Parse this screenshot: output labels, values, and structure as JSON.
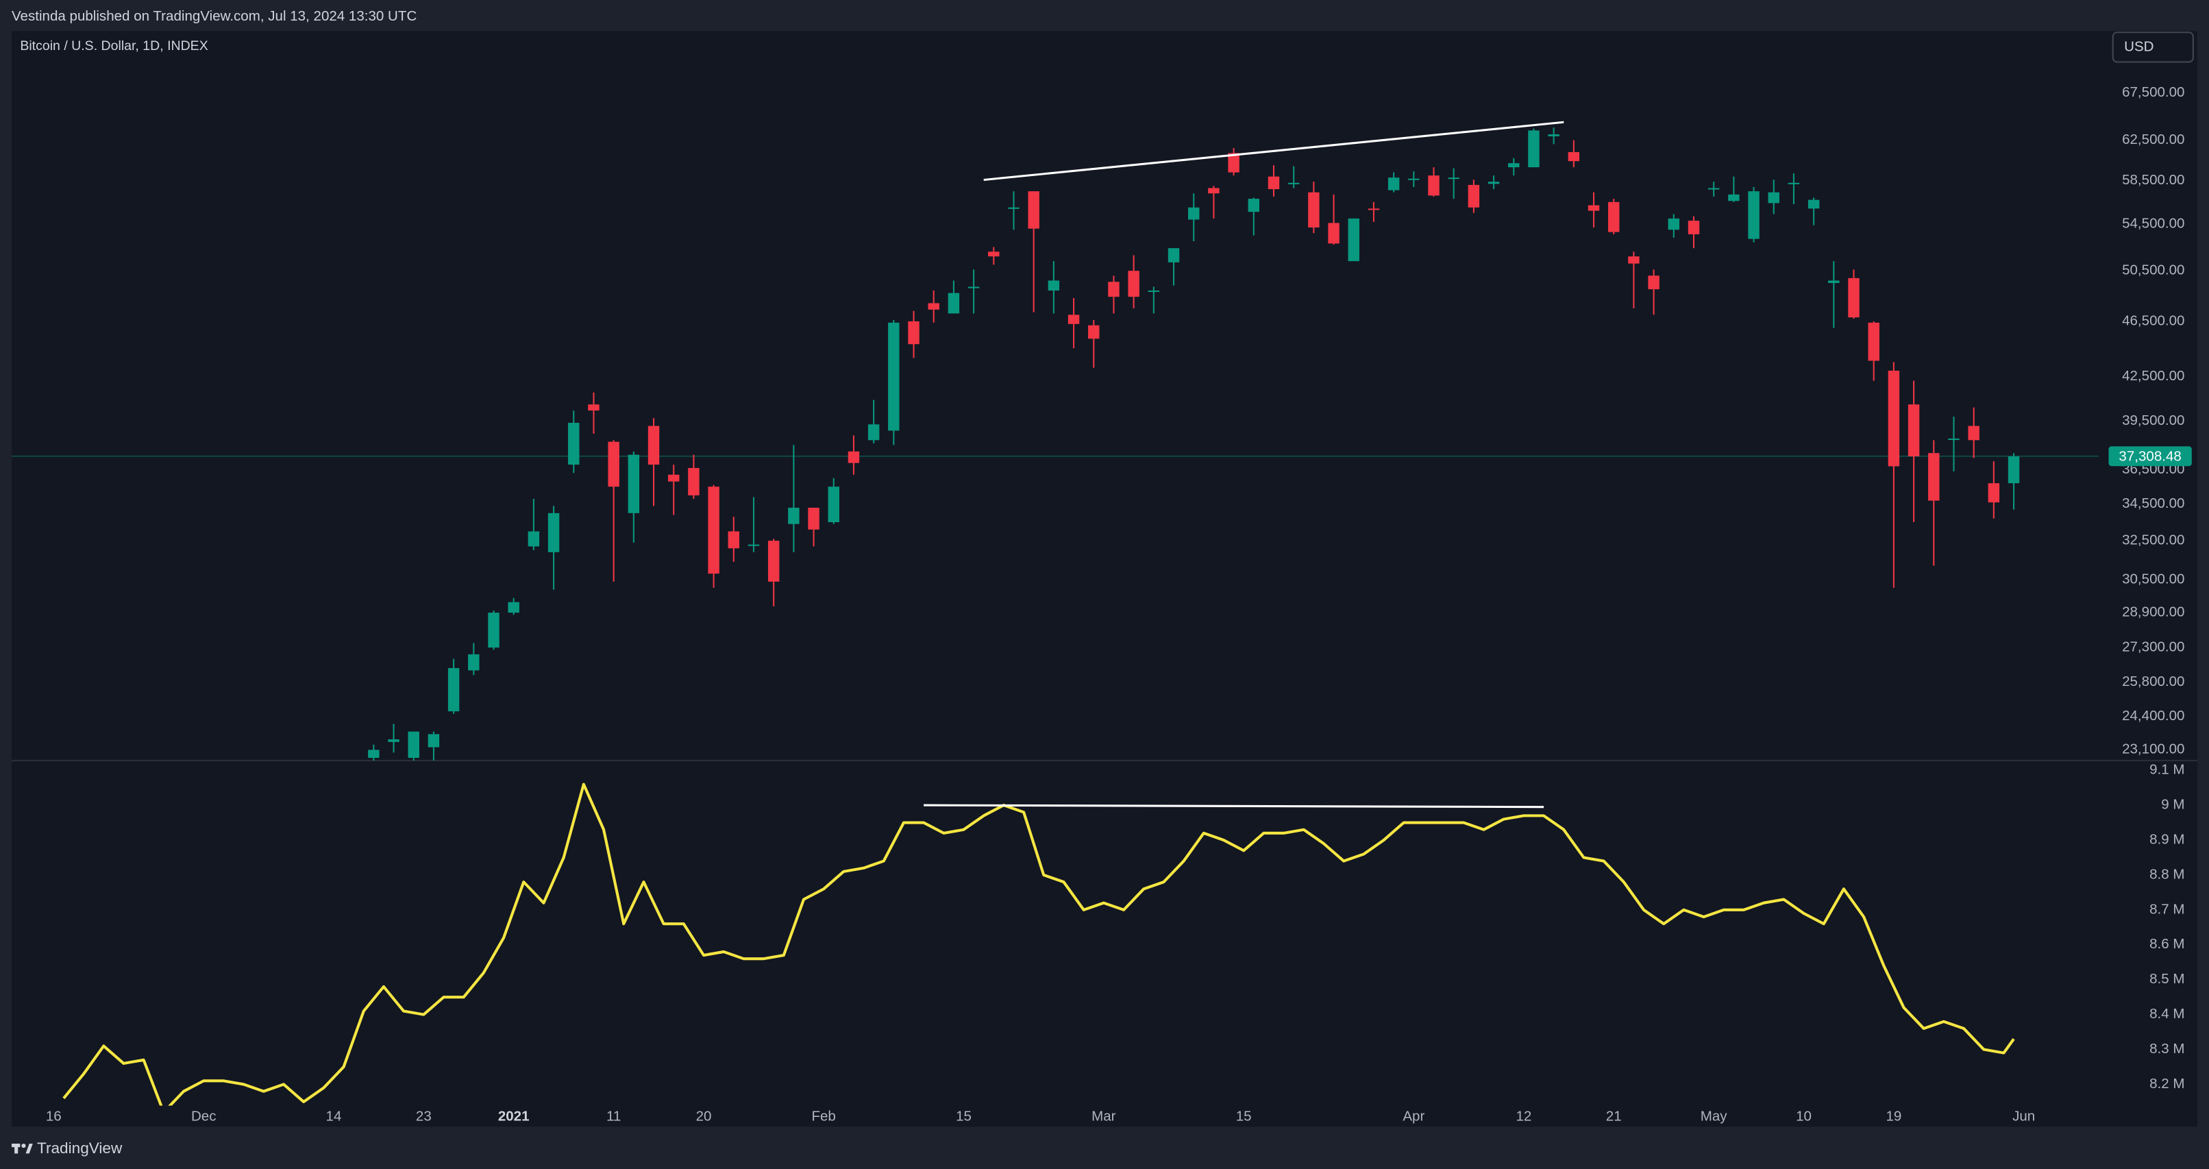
{
  "header": {
    "published": "Vestinda published on TradingView.com, Jul 13, 2024 13:30 UTC",
    "currency": "USD",
    "brand": "TradingView"
  },
  "chart_data": [
    {
      "type": "candlestick",
      "title": "Bitcoin / U.S. Dollar, 1D, INDEX",
      "log": true,
      "grid": false,
      "up_color": "#089981",
      "down_color": "#f23645",
      "xlim": [
        -4.2,
        204.5
      ],
      "ylim": [
        22700,
        74700
      ],
      "yticks": [
        {
          "value": 67500,
          "label": "67,500.00"
        },
        {
          "value": 62500,
          "label": "62,500.00"
        },
        {
          "value": 58500,
          "label": "58,500.00"
        },
        {
          "value": 54500,
          "label": "54,500.00"
        },
        {
          "value": 50500,
          "label": "50,500.00"
        },
        {
          "value": 46500,
          "label": "46,500.00"
        },
        {
          "value": 42500,
          "label": "42,500.00"
        },
        {
          "value": 39500,
          "label": "39,500.00"
        },
        {
          "value": 36500,
          "label": "36,500.00"
        },
        {
          "value": 34500,
          "label": "34,500.00"
        },
        {
          "value": 32500,
          "label": "32,500.00"
        },
        {
          "value": 30500,
          "label": "30,500.00"
        },
        {
          "value": 28900,
          "label": "28,900.00"
        },
        {
          "value": 27300,
          "label": "27,300.00"
        },
        {
          "value": 25800,
          "label": "25,800.00"
        },
        {
          "value": 24400,
          "label": "24,400.00"
        },
        {
          "value": 23100,
          "label": "23,100.00"
        }
      ],
      "x": [
        32,
        34,
        36,
        38,
        40,
        42,
        44,
        46,
        48,
        50,
        52,
        54,
        56,
        58,
        60,
        62,
        64,
        66,
        68,
        70,
        72,
        74,
        76,
        78,
        80,
        82,
        84,
        86,
        88,
        90,
        92,
        94,
        96,
        98,
        100,
        102,
        104,
        106,
        108,
        110,
        112,
        114,
        116,
        118,
        120,
        122,
        124,
        126,
        128,
        130,
        132,
        134,
        136,
        138,
        140,
        142,
        144,
        146,
        148,
        150,
        152,
        154,
        156,
        158,
        160,
        162,
        164,
        166,
        168,
        170,
        172,
        174,
        176,
        178,
        180,
        182,
        184,
        186,
        188,
        190,
        192,
        194,
        196
      ],
      "open": [
        22800,
        23400,
        22800,
        23200,
        24600,
        26300,
        27300,
        28900,
        32200,
        31900,
        36800,
        40600,
        38200,
        34000,
        39200,
        36200,
        36600,
        35500,
        33000,
        32300,
        32500,
        33400,
        34300,
        33500,
        37600,
        38300,
        38900,
        46500,
        47900,
        47100,
        49200,
        52100,
        55900,
        57500,
        48900,
        47000,
        46200,
        49600,
        50500,
        48800,
        51200,
        54900,
        57800,
        61200,
        55600,
        58900,
        58300,
        57400,
        54600,
        51300,
        55900,
        57600,
        58700,
        59000,
        58800,
        58100,
        58200,
        59800,
        59800,
        62900,
        61300,
        56200,
        56500,
        51700,
        50100,
        54000,
        54800,
        57700,
        56600,
        53200,
        56400,
        58200,
        55900,
        49500,
        49900,
        46400,
        42900,
        40600,
        37500,
        38400,
        39200,
        35700,
        35700
      ],
      "high": [
        23300,
        24100,
        23800,
        23800,
        26800,
        27500,
        29000,
        29600,
        34800,
        34400,
        40200,
        41400,
        38300,
        37600,
        39700,
        36800,
        37400,
        35600,
        33800,
        34900,
        32600,
        38000,
        34300,
        36000,
        38600,
        40900,
        46600,
        47300,
        48900,
        49700,
        50600,
        52500,
        57500,
        57500,
        51300,
        48300,
        46600,
        50100,
        51800,
        49200,
        52400,
        57300,
        58000,
        61700,
        56900,
        60000,
        59900,
        58400,
        57200,
        55000,
        56500,
        59300,
        59400,
        59800,
        59700,
        58600,
        59000,
        60700,
        63700,
        63800,
        62500,
        57400,
        56800,
        52100,
        50600,
        55400,
        55200,
        58400,
        58900,
        57900,
        58600,
        59200,
        56900,
        51300,
        50600,
        46500,
        43500,
        42200,
        38300,
        39800,
        40400,
        37000,
        37500
      ],
      "low": [
        22400,
        23000,
        22400,
        22700,
        24500,
        26100,
        27200,
        28800,
        32000,
        30000,
        36300,
        38700,
        30400,
        32400,
        34400,
        33900,
        34800,
        30100,
        31400,
        31900,
        29200,
        31900,
        32200,
        33400,
        36200,
        38100,
        38000,
        43800,
        46400,
        47100,
        47100,
        51000,
        54000,
        47200,
        47100,
        44500,
        43100,
        47100,
        47500,
        47100,
        49300,
        53000,
        55000,
        59000,
        53500,
        57000,
        57800,
        53700,
        52700,
        51300,
        54700,
        57400,
        57900,
        57000,
        56800,
        55500,
        57700,
        59000,
        59800,
        62100,
        59800,
        54200,
        53600,
        47500,
        47000,
        53300,
        52400,
        57000,
        56500,
        52900,
        55400,
        56300,
        54400,
        46000,
        46700,
        42200,
        30100,
        33500,
        31200,
        36400,
        37200,
        33700,
        34200
      ],
      "close": [
        23100,
        23500,
        23800,
        23700,
        26400,
        27000,
        28900,
        29400,
        33000,
        34000,
        39400,
        40200,
        35500,
        37400,
        36800,
        35800,
        35000,
        30800,
        32100,
        32300,
        30400,
        34300,
        33100,
        35500,
        36900,
        39300,
        46400,
        44800,
        47400,
        48700,
        49200,
        51700,
        56000,
        54100,
        49700,
        46300,
        45200,
        48400,
        48400,
        48900,
        52400,
        56000,
        57300,
        59300,
        56800,
        57700,
        58300,
        54200,
        52800,
        55000,
        55800,
        58800,
        58700,
        57100,
        58800,
        56000,
        58400,
        60200,
        63500,
        63100,
        60400,
        55700,
        53800,
        51100,
        49000,
        55000,
        53600,
        57800,
        57200,
        57500,
        57400,
        58300,
        56700,
        49700,
        46800,
        43600,
        36700,
        37300,
        34700,
        38400,
        38300,
        34600,
        37300
      ],
      "last_price": {
        "value": 37308.48,
        "label": "37,308.48",
        "color": "#089981"
      },
      "annotations": [
        {
          "x": [
            93,
            151
          ],
          "y": [
            58580,
            64370
          ],
          "color": "#ffffff"
        }
      ]
    },
    {
      "type": "line",
      "log": false,
      "grid": false,
      "color": "#f5e642",
      "xlim": [
        -4.2,
        204.5
      ],
      "ylim": [
        8.139,
        9.128
      ],
      "yticks": [
        {
          "value": 9.1,
          "label": "9.1 M"
        },
        {
          "value": 9.0,
          "label": "9 M"
        },
        {
          "value": 8.9,
          "label": "8.9 M"
        },
        {
          "value": 8.8,
          "label": "8.8 M"
        },
        {
          "value": 8.7,
          "label": "8.7 M"
        },
        {
          "value": 8.6,
          "label": "8.6 M"
        },
        {
          "value": 8.5,
          "label": "8.5 M"
        },
        {
          "value": 8.4,
          "label": "8.4 M"
        },
        {
          "value": 8.3,
          "label": "8.3 M"
        },
        {
          "value": 8.2,
          "label": "8.2 M"
        }
      ],
      "xticks": [
        {
          "value": 0,
          "label": "16"
        },
        {
          "value": 15,
          "label": "Dec"
        },
        {
          "value": 28,
          "label": "14"
        },
        {
          "value": 37,
          "label": "23"
        },
        {
          "value": 46,
          "label": "2021",
          "bold": true
        },
        {
          "value": 56,
          "label": "11"
        },
        {
          "value": 65,
          "label": "20"
        },
        {
          "value": 77,
          "label": "Feb"
        },
        {
          "value": 91,
          "label": "15"
        },
        {
          "value": 105,
          "label": "Mar"
        },
        {
          "value": 119,
          "label": "15"
        },
        {
          "value": 136,
          "label": "Apr"
        },
        {
          "value": 147,
          "label": "12"
        },
        {
          "value": 156,
          "label": "21"
        },
        {
          "value": 166,
          "label": "May"
        },
        {
          "value": 175,
          "label": "10"
        },
        {
          "value": 184,
          "label": "19"
        },
        {
          "value": 197,
          "label": "Jun"
        }
      ],
      "x": [
        1,
        3,
        5,
        7,
        9,
        11,
        13,
        15,
        17,
        19,
        21,
        23,
        25,
        27,
        29,
        31,
        33,
        35,
        37,
        39,
        41,
        43,
        45,
        47,
        49,
        51,
        53,
        55,
        57,
        59,
        61,
        63,
        65,
        67,
        69,
        71,
        73,
        75,
        77,
        79,
        81,
        83,
        85,
        87,
        89,
        91,
        93,
        95,
        97,
        99,
        101,
        103,
        105,
        107,
        109,
        111,
        113,
        115,
        117,
        119,
        121,
        123,
        125,
        127,
        129,
        131,
        133,
        135,
        137,
        139,
        141,
        143,
        145,
        147,
        149,
        151,
        153,
        155,
        157,
        159,
        161,
        163,
        165,
        167,
        169,
        171,
        173,
        175,
        177,
        179,
        181,
        183,
        185,
        187,
        189,
        191,
        193,
        195,
        196
      ],
      "values": [
        8.16,
        8.23,
        8.31,
        8.26,
        8.27,
        8.12,
        8.18,
        8.21,
        8.21,
        8.2,
        8.18,
        8.2,
        8.15,
        8.19,
        8.25,
        8.41,
        8.48,
        8.41,
        8.4,
        8.45,
        8.45,
        8.52,
        8.62,
        8.78,
        8.72,
        8.85,
        9.06,
        8.93,
        8.66,
        8.78,
        8.66,
        8.66,
        8.57,
        8.58,
        8.56,
        8.56,
        8.57,
        8.73,
        8.76,
        8.81,
        8.82,
        8.84,
        8.95,
        8.95,
        8.92,
        8.93,
        8.97,
        9.0,
        8.98,
        8.8,
        8.78,
        8.7,
        8.72,
        8.7,
        8.76,
        8.78,
        8.84,
        8.92,
        8.9,
        8.87,
        8.92,
        8.92,
        8.93,
        8.89,
        8.84,
        8.86,
        8.9,
        8.95,
        8.95,
        8.95,
        8.95,
        8.93,
        8.96,
        8.97,
        8.97,
        8.93,
        8.85,
        8.84,
        8.78,
        8.7,
        8.66,
        8.7,
        8.68,
        8.7,
        8.7,
        8.72,
        8.73,
        8.69,
        8.66,
        8.76,
        8.68,
        8.54,
        8.42,
        8.36,
        8.38,
        8.36,
        8.3,
        8.29,
        8.33
      ],
      "annotations": [
        {
          "x": [
            87,
            149
          ],
          "y": [
            9.0,
            8.995
          ],
          "color": "#ffffff"
        }
      ]
    }
  ]
}
